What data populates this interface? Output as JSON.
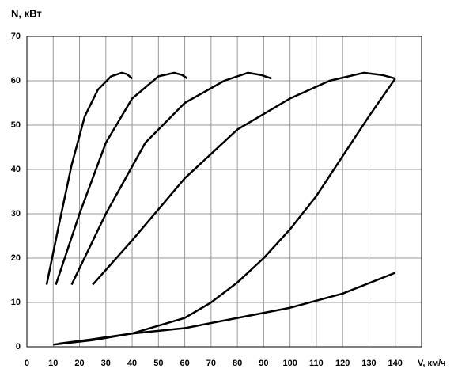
{
  "chart_data": {
    "type": "line",
    "ylabel": "N, кВт",
    "xlabel": "V, км/ч",
    "xlim": [
      0,
      150
    ],
    "ylim": [
      0,
      70
    ],
    "xticks": [
      0,
      10,
      20,
      30,
      40,
      50,
      60,
      70,
      80,
      90,
      100,
      110,
      120,
      130,
      140
    ],
    "yticks": [
      0,
      10,
      20,
      30,
      40,
      50,
      60,
      70
    ],
    "grid": true,
    "series": [
      {
        "color": "#000000",
        "x": [
          7.5,
          12,
          17,
          22,
          27,
          32,
          36,
          38,
          40
        ],
        "values": [
          14,
          27,
          41,
          52,
          58,
          61,
          61.8,
          61.5,
          60.5
        ]
      },
      {
        "color": "#000000",
        "x": [
          11,
          20,
          30,
          40,
          50,
          56,
          59,
          61
        ],
        "values": [
          14,
          30,
          46,
          56,
          61,
          61.8,
          61.3,
          60.5
        ]
      },
      {
        "color": "#000000",
        "x": [
          17,
          30,
          45,
          60,
          75,
          84,
          89,
          93
        ],
        "values": [
          14,
          30,
          46,
          55,
          60,
          61.8,
          61.3,
          60.5
        ]
      },
      {
        "color": "#000000",
        "x": [
          25,
          40,
          60,
          80,
          100,
          115,
          128,
          135,
          140
        ],
        "values": [
          14,
          24,
          38,
          49,
          56,
          60,
          61.8,
          61.3,
          60.5
        ]
      },
      {
        "color": "#000000",
        "x": [
          10,
          25,
          40,
          60,
          70,
          80,
          90,
          100,
          110,
          120,
          130,
          140
        ],
        "values": [
          0.5,
          1.5,
          3,
          6.5,
          10,
          14.5,
          20,
          26.5,
          34,
          43,
          52,
          60.5
        ]
      },
      {
        "color": "#000000",
        "x": [
          12,
          25,
          40,
          60,
          80,
          100,
          120,
          140
        ],
        "values": [
          0.7,
          1.7,
          3,
          4.2,
          6.5,
          8.8,
          12,
          16.7
        ]
      }
    ]
  }
}
